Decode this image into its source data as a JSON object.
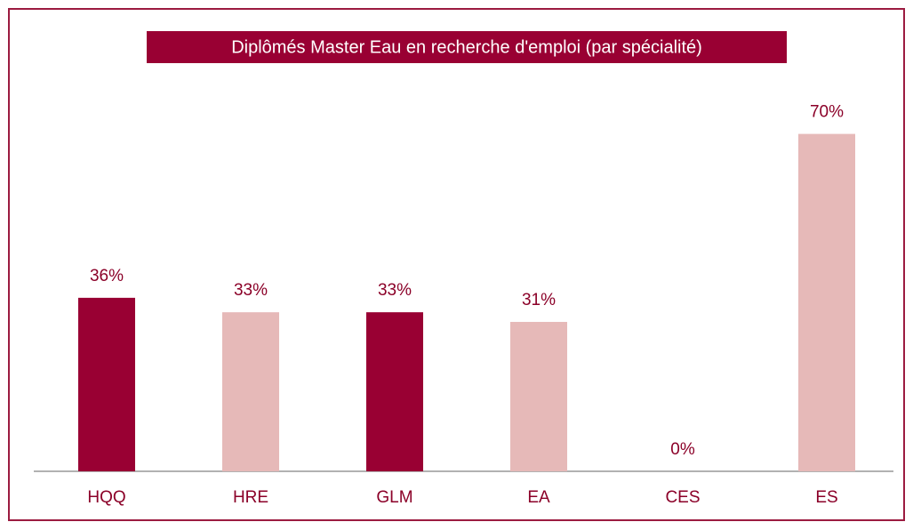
{
  "chart_data": {
    "type": "bar",
    "title": "Diplômés Master Eau en recherche d'emploi (par spécialité)",
    "categories": [
      "HQQ",
      "HRE",
      "GLM",
      "EA",
      "CES",
      "ES"
    ],
    "values": [
      36,
      33,
      33,
      31,
      0,
      70
    ],
    "value_labels": [
      "36%",
      "33%",
      "33%",
      "31%",
      "0%",
      "70%"
    ],
    "colors": [
      "#990033",
      "#e6b9b8",
      "#990033",
      "#e6b9b8",
      "#e6b9b8",
      "#e6b9b8"
    ]
  }
}
